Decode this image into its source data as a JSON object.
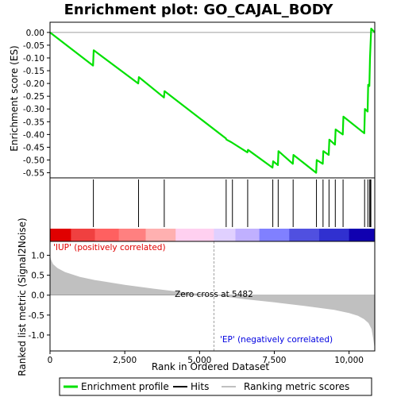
{
  "chart_data": {
    "type": "line",
    "title": "Enrichment plot: GO_CAJAL_BODY",
    "n_genes": 10860,
    "es_panel": {
      "ylabel": "Enrichment score (ES)",
      "ylim": [
        -0.57,
        0.04
      ],
      "yticks": [
        0.0,
        -0.05,
        -0.1,
        -0.15,
        -0.2,
        -0.25,
        -0.3,
        -0.35,
        -0.4,
        -0.45,
        -0.5,
        -0.55
      ],
      "ytick_labels": [
        "0.00",
        "-0.05",
        "-0.10",
        "-0.15",
        "-0.20",
        "-0.25",
        "-0.30",
        "-0.35",
        "-0.40",
        "-0.45",
        "-0.50",
        "-0.55"
      ],
      "series": [
        {
          "name": "Enrichment profile",
          "color": "#00e000",
          "x": [
            0,
            1440,
            1460,
            2950,
            2970,
            3810,
            3830,
            5880,
            5900,
            6060,
            6600,
            6620,
            7440,
            7460,
            7620,
            7640,
            8120,
            8140,
            8900,
            8920,
            9120,
            9140,
            9320,
            9340,
            9530,
            9550,
            9790,
            9810,
            10510,
            10530,
            10620,
            10640,
            10680,
            10700,
            10740,
            10860
          ],
          "y": [
            0.0,
            -0.13,
            -0.07,
            -0.2,
            -0.175,
            -0.255,
            -0.23,
            -0.415,
            -0.42,
            -0.43,
            -0.47,
            -0.46,
            -0.53,
            -0.505,
            -0.52,
            -0.465,
            -0.515,
            -0.48,
            -0.55,
            -0.5,
            -0.515,
            -0.465,
            -0.48,
            -0.42,
            -0.44,
            -0.38,
            -0.4,
            -0.33,
            -0.395,
            -0.3,
            -0.31,
            -0.205,
            -0.21,
            -0.1,
            0.015,
            0.0
          ]
        }
      ]
    },
    "hits": {
      "name": "Hits",
      "positions": [
        1450,
        2960,
        3820,
        5890,
        6100,
        6610,
        7450,
        7630,
        8130,
        8910,
        9130,
        9330,
        9540,
        9800,
        10520,
        10630,
        10690,
        10710,
        10730
      ]
    },
    "heat_bar": {
      "colors": [
        "#e00000",
        "#f04040",
        "#ff6060",
        "#ff8080",
        "#ffb0b0",
        "#ffd0f0",
        "#e0d0ff",
        "#c0b0ff",
        "#8080ff",
        "#5050e0",
        "#3030d0",
        "#1000b0"
      ],
      "breaks": [
        0,
        700,
        1500,
        2300,
        3200,
        4200,
        5480,
        6200,
        7000,
        8000,
        9000,
        10000,
        10860
      ]
    },
    "metric_panel": {
      "ylabel": "Ranked list metric (Signal2Noise)",
      "ylim": [
        -1.4,
        1.35
      ],
      "yticks": [
        1.0,
        0.5,
        0.0,
        -0.5,
        -1.0
      ],
      "ytick_labels": [
        "1.0",
        "0.5",
        "0.0",
        "-0.5",
        "-1.0"
      ],
      "series": [
        {
          "name": "Ranking metric scores",
          "color": "#c0c0c0",
          "x": [
            0,
            30,
            100,
            250,
            500,
            1000,
            1500,
            2500,
            3500,
            4500,
            5482,
            6500,
            7500,
            8500,
            9500,
            10000,
            10300,
            10500,
            10650,
            10750,
            10800,
            10860
          ],
          "y": [
            1.0,
            0.9,
            0.78,
            0.68,
            0.58,
            0.46,
            0.38,
            0.26,
            0.16,
            0.07,
            0.0,
            -0.1,
            -0.18,
            -0.27,
            -0.37,
            -0.45,
            -0.52,
            -0.6,
            -0.7,
            -0.85,
            -1.05,
            -1.35
          ]
        }
      ],
      "zero_cross": 5482,
      "zero_cross_label": "Zero cross at 5482",
      "pos_label": "'IUP' (positively correlated)",
      "neg_label": "'EP' (negatively correlated)",
      "pos_color": "#e00000",
      "neg_color": "#0000e0"
    },
    "xaxis": {
      "xlabel": "Rank in Ordered Dataset",
      "xlim": [
        0,
        10860
      ],
      "xticks": [
        0,
        2500,
        5000,
        7500,
        10000
      ],
      "xtick_labels": [
        "0",
        "2,500",
        "5,000",
        "7,500",
        "10,000"
      ]
    },
    "legend": {
      "items": [
        {
          "label": "Enrichment profile",
          "color": "#00e000"
        },
        {
          "label": "Hits",
          "color": "#000000"
        },
        {
          "label": "Ranking metric scores",
          "color": "#c0c0c0"
        }
      ]
    }
  }
}
